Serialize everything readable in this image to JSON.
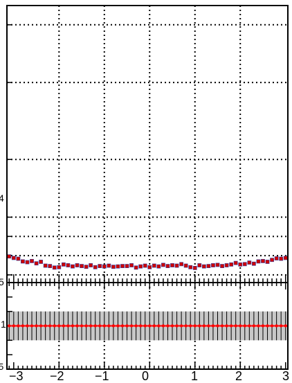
{
  "chart_data": [
    {
      "type": "scatter",
      "panel": "main",
      "xlim": [
        -3.15,
        3.05
      ],
      "grid": true,
      "grid_style": "dotted",
      "ytick_fragments": [
        "4",
        "5"
      ],
      "marker_color": "#cc0000",
      "marker_edge": "#3344aa",
      "x": [
        -3.1,
        -3.0,
        -2.9,
        -2.8,
        -2.7,
        -2.6,
        -2.5,
        -2.4,
        -2.3,
        -2.2,
        -2.1,
        -2.0,
        -1.9,
        -1.8,
        -1.7,
        -1.6,
        -1.5,
        -1.4,
        -1.3,
        -1.2,
        -1.1,
        -1.0,
        -0.9,
        -0.8,
        -0.7,
        -0.6,
        -0.5,
        -0.4,
        -0.3,
        -0.2,
        -0.1,
        0.0,
        0.1,
        0.2,
        0.3,
        0.4,
        0.5,
        0.6,
        0.7,
        0.8,
        0.9,
        1.0,
        1.1,
        1.2,
        1.3,
        1.4,
        1.5,
        1.6,
        1.7,
        1.8,
        1.9,
        2.0,
        2.1,
        2.2,
        2.3,
        2.4,
        2.5,
        2.6,
        2.7,
        2.8,
        2.9,
        3.0
      ],
      "y": [
        0.348,
        0.344,
        0.342,
        0.335,
        0.333,
        0.336,
        0.33,
        0.334,
        0.324,
        0.323,
        0.319,
        0.32,
        0.327,
        0.325,
        0.322,
        0.325,
        0.323,
        0.321,
        0.325,
        0.32,
        0.323,
        0.322,
        0.324,
        0.321,
        0.322,
        0.323,
        0.323,
        0.325,
        0.319,
        0.322,
        0.324,
        0.32,
        0.324,
        0.322,
        0.326,
        0.323,
        0.325,
        0.324,
        0.328,
        0.324,
        0.32,
        0.318,
        0.325,
        0.322,
        0.323,
        0.325,
        0.326,
        0.323,
        0.325,
        0.327,
        0.331,
        0.327,
        0.328,
        0.332,
        0.329,
        0.335,
        0.336,
        0.334,
        0.339,
        0.343,
        0.342,
        0.344
      ]
    },
    {
      "type": "line",
      "panel": "ratio",
      "xlim": [
        -3.15,
        3.05
      ],
      "xticks": [
        "−3",
        "−2",
        "−1",
        "0",
        "1",
        "2",
        "3"
      ],
      "ytick_labels": [
        "1"
      ],
      "ytick_fragment": "5",
      "grid": true,
      "band_color": "#c8c8c8",
      "line_color": "#ff0000",
      "x": [
        -3.1,
        -3.0,
        -2.9,
        -2.8,
        -2.7,
        -2.6,
        -2.5,
        -2.4,
        -2.3,
        -2.2,
        -2.1,
        -2.0,
        -1.9,
        -1.8,
        -1.7,
        -1.6,
        -1.5,
        -1.4,
        -1.3,
        -1.2,
        -1.1,
        -1.0,
        -0.9,
        -0.8,
        -0.7,
        -0.6,
        -0.5,
        -0.4,
        -0.3,
        -0.2,
        -0.1,
        0.0,
        0.1,
        0.2,
        0.3,
        0.4,
        0.5,
        0.6,
        0.7,
        0.8,
        0.9,
        1.0,
        1.1,
        1.2,
        1.3,
        1.4,
        1.5,
        1.6,
        1.7,
        1.8,
        1.9,
        2.0,
        2.1,
        2.2,
        2.3,
        2.4,
        2.5,
        2.6,
        2.7,
        2.8,
        2.9,
        3.0
      ],
      "ratio": 1.0,
      "band": [
        0.95,
        1.05
      ]
    }
  ]
}
